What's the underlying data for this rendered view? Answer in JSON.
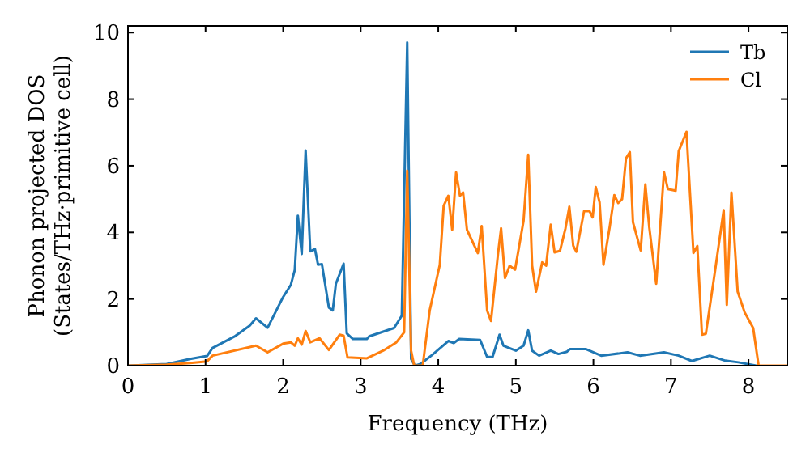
{
  "chart_data": {
    "type": "line",
    "xlabel": "Frequency (THz)",
    "ylabel": "Phonon projected DOS\n(States/THz·primitive cell)",
    "xlim": [
      0,
      8.5
    ],
    "ylim": [
      0,
      10.2
    ],
    "xticks": [
      0,
      1,
      2,
      3,
      4,
      5,
      6,
      7,
      8
    ],
    "yticks": [
      0,
      2,
      4,
      6,
      8,
      10
    ],
    "legend": "top right",
    "grid": false,
    "series": [
      {
        "name": "Tb",
        "color": "#1f77b4",
        "x": [
          0,
          0.5,
          0.8,
          1.02,
          1.09,
          1.37,
          1.57,
          1.65,
          1.8,
          2.0,
          2.1,
          2.15,
          2.19,
          2.24,
          2.29,
          2.35,
          2.41,
          2.45,
          2.5,
          2.59,
          2.64,
          2.68,
          2.78,
          2.82,
          2.9,
          3.08,
          3.11,
          3.43,
          3.53,
          3.6,
          3.65,
          3.7,
          3.77,
          3.92,
          4.13,
          4.2,
          4.27,
          4.54,
          4.63,
          4.7,
          4.79,
          4.84,
          5.0,
          5.1,
          5.16,
          5.21,
          5.3,
          5.45,
          5.55,
          5.66,
          5.7,
          5.9,
          6.1,
          6.44,
          6.6,
          6.91,
          7.1,
          7.27,
          7.5,
          7.7,
          7.87,
          8.1
        ],
        "values": [
          0,
          0.05,
          0.2,
          0.29,
          0.53,
          0.87,
          1.2,
          1.42,
          1.14,
          2.06,
          2.43,
          2.87,
          4.5,
          3.35,
          6.46,
          3.43,
          3.5,
          3.03,
          3.05,
          1.74,
          1.66,
          2.46,
          3.06,
          0.97,
          0.8,
          0.8,
          0.88,
          1.13,
          1.5,
          9.7,
          0.2,
          0,
          0.05,
          0.32,
          0.74,
          0.68,
          0.8,
          0.77,
          0.26,
          0.26,
          0.93,
          0.6,
          0.45,
          0.6,
          1.06,
          0.45,
          0.3,
          0.45,
          0.35,
          0.42,
          0.5,
          0.5,
          0.3,
          0.4,
          0.3,
          0.4,
          0.3,
          0.14,
          0.3,
          0.15,
          0.1,
          0
        ]
      },
      {
        "name": "Cl",
        "color": "#ff7f0e",
        "x": [
          0,
          0.5,
          0.8,
          1.02,
          1.09,
          1.65,
          1.8,
          2.0,
          2.1,
          2.15,
          2.19,
          2.24,
          2.29,
          2.35,
          2.47,
          2.59,
          2.73,
          2.78,
          2.83,
          3.08,
          3.29,
          3.46,
          3.56,
          3.6,
          3.65,
          3.69,
          3.8,
          3.89,
          4.02,
          4.07,
          4.13,
          4.18,
          4.23,
          4.28,
          4.32,
          4.37,
          4.51,
          4.56,
          4.63,
          4.68,
          4.77,
          4.81,
          4.86,
          4.92,
          4.99,
          5.1,
          5.16,
          5.21,
          5.26,
          5.34,
          5.39,
          5.45,
          5.5,
          5.57,
          5.64,
          5.69,
          5.74,
          5.78,
          5.88,
          5.95,
          5.99,
          6.03,
          6.08,
          6.13,
          6.21,
          6.27,
          6.32,
          6.37,
          6.42,
          6.47,
          6.51,
          6.61,
          6.67,
          6.72,
          6.81,
          6.91,
          6.96,
          7.06,
          7.1,
          7.2,
          7.29,
          7.34,
          7.4,
          7.45,
          7.57,
          7.68,
          7.72,
          7.78,
          7.86,
          7.95,
          8.06,
          8.13,
          8.5
        ],
        "values": [
          0,
          0.03,
          0.08,
          0.13,
          0.3,
          0.6,
          0.4,
          0.66,
          0.7,
          0.6,
          0.82,
          0.63,
          1.04,
          0.7,
          0.82,
          0.47,
          0.93,
          0.9,
          0.25,
          0.22,
          0.45,
          0.7,
          1.0,
          5.85,
          0.45,
          0,
          0,
          1.66,
          3.03,
          4.8,
          5.1,
          4.08,
          5.8,
          5.1,
          5.2,
          4.08,
          3.38,
          4.19,
          1.66,
          1.34,
          3.35,
          4.12,
          2.63,
          3.0,
          2.88,
          4.35,
          6.33,
          3.0,
          2.22,
          3.1,
          3.0,
          4.23,
          3.4,
          3.45,
          4.12,
          4.77,
          3.6,
          3.42,
          4.64,
          4.64,
          4.45,
          5.36,
          4.9,
          3.03,
          4.16,
          5.12,
          4.88,
          5.0,
          6.22,
          6.41,
          4.31,
          3.46,
          5.44,
          4.16,
          2.46,
          5.81,
          5.3,
          5.25,
          6.44,
          7.02,
          3.38,
          3.59,
          0.93,
          0.96,
          2.87,
          4.67,
          1.82,
          5.2,
          2.22,
          1.6,
          1.13,
          0,
          0
        ]
      }
    ]
  }
}
